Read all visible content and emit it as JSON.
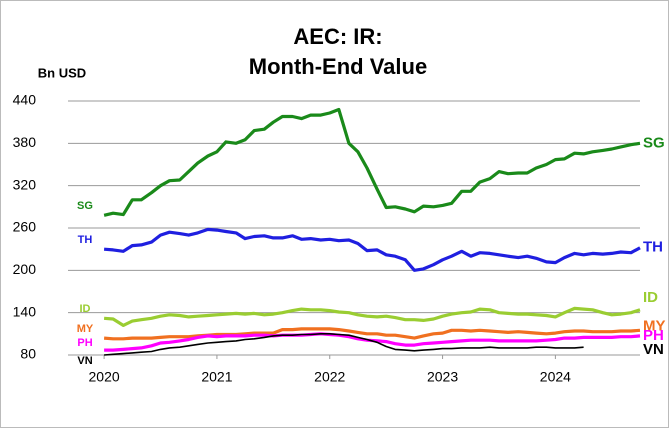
{
  "chart_data": {
    "type": "line",
    "title": [
      "AEC: IR:",
      "Month-End Value"
    ],
    "y_label": "Bn USD",
    "x": [
      2020,
      2020.08,
      2020.17,
      2020.25,
      2020.33,
      2020.42,
      2020.5,
      2020.58,
      2020.67,
      2020.75,
      2020.83,
      2020.92,
      2021,
      2021.08,
      2021.17,
      2021.25,
      2021.33,
      2021.42,
      2021.5,
      2021.58,
      2021.67,
      2021.75,
      2021.83,
      2021.92,
      2022,
      2022.08,
      2022.17,
      2022.25,
      2022.33,
      2022.42,
      2022.5,
      2022.58,
      2022.67,
      2022.75,
      2022.83,
      2022.92,
      2023,
      2023.08,
      2023.17,
      2023.25,
      2023.33,
      2023.42,
      2023.5,
      2023.58,
      2023.67,
      2023.75,
      2023.83,
      2023.92,
      2024,
      2024.08,
      2024.17,
      2024.25,
      2024.33,
      2024.42,
      2024.5,
      2024.58,
      2024.67,
      2024.75
    ],
    "series": [
      {
        "name": "SG",
        "color": "#1a8a1a",
        "values": [
          278,
          281,
          279,
          300,
          300,
          310,
          320,
          327,
          328,
          340,
          352,
          362,
          368,
          382,
          380,
          385,
          398,
          400,
          410,
          418,
          418,
          415,
          420,
          420,
          423,
          428,
          380,
          368,
          345,
          315,
          289,
          290,
          287,
          283,
          291,
          290,
          292,
          295,
          312,
          312,
          325,
          330,
          340,
          337,
          338,
          338,
          345,
          350,
          357,
          358,
          366,
          365,
          368,
          370,
          372,
          375,
          378,
          380
        ]
      },
      {
        "name": "TH",
        "color": "#1f1fe0",
        "values": [
          230,
          229,
          227,
          235,
          236,
          240,
          250,
          254,
          252,
          250,
          253,
          258,
          257,
          255,
          253,
          245,
          248,
          249,
          246,
          246,
          249,
          244,
          245,
          243,
          244,
          242,
          243,
          238,
          228,
          229,
          222,
          220,
          215,
          200,
          202,
          208,
          215,
          220,
          227,
          220,
          225,
          224,
          222,
          220,
          218,
          220,
          217,
          212,
          211,
          218,
          224,
          222,
          224,
          223,
          224,
          226,
          225,
          232
        ]
      },
      {
        "name": "ID",
        "color": "#9acd32",
        "values": [
          132,
          131,
          122,
          128,
          130,
          132,
          135,
          137,
          136,
          134,
          135,
          136,
          137,
          138,
          139,
          138,
          139,
          137,
          138,
          140,
          143,
          145,
          144,
          144,
          143,
          141,
          140,
          137,
          135,
          134,
          135,
          133,
          130,
          130,
          129,
          131,
          135,
          138,
          140,
          141,
          145,
          144,
          140,
          139,
          138,
          138,
          137,
          136,
          134,
          140,
          146,
          145,
          144,
          140,
          137,
          138,
          140,
          144
        ]
      },
      {
        "name": "MY",
        "color": "#f07020",
        "values": [
          104,
          103,
          103,
          104,
          104,
          104,
          105,
          106,
          106,
          106,
          107,
          108,
          109,
          109,
          109,
          110,
          111,
          111,
          111,
          116,
          116,
          117,
          117,
          117,
          117,
          116,
          114,
          112,
          110,
          110,
          108,
          108,
          106,
          104,
          107,
          110,
          111,
          115,
          115,
          114,
          115,
          114,
          113,
          112,
          113,
          112,
          111,
          110,
          111,
          113,
          114,
          114,
          113,
          113,
          113,
          114,
          114,
          115
        ]
      },
      {
        "name": "PH",
        "color": "#ff00ff",
        "values": [
          87,
          87,
          88,
          89,
          90,
          93,
          97,
          98,
          100,
          102,
          105,
          107,
          106,
          107,
          107,
          107,
          108,
          108,
          107,
          108,
          108,
          108,
          109,
          110,
          109,
          108,
          106,
          103,
          101,
          100,
          99,
          96,
          94,
          94,
          96,
          97,
          98,
          99,
          100,
          101,
          101,
          101,
          100,
          100,
          100,
          100,
          100,
          101,
          102,
          104,
          104,
          105,
          105,
          105,
          105,
          106,
          106,
          107
        ]
      },
      {
        "name": "VN",
        "color": "#000000",
        "values": [
          80,
          81,
          82,
          83,
          84,
          85,
          88,
          90,
          91,
          93,
          95,
          97,
          98,
          99,
          100,
          102,
          103,
          105,
          107,
          108,
          108,
          109,
          109,
          110,
          110,
          109,
          108,
          105,
          102,
          98,
          92,
          88,
          87,
          86,
          87,
          88,
          89,
          89,
          90,
          90,
          90,
          91,
          90,
          90,
          90,
          90,
          91,
          91,
          90,
          90,
          90,
          91,
          null,
          null,
          null,
          null,
          null,
          null
        ]
      }
    ],
    "xlim": [
      2019.68,
      2024.75
    ],
    "xticks": [
      2020,
      2021,
      2022,
      2023,
      2024
    ],
    "ylim": [
      80,
      440
    ],
    "yticks": [
      80,
      140,
      200,
      260,
      320,
      380,
      440
    ],
    "grid": true
  }
}
